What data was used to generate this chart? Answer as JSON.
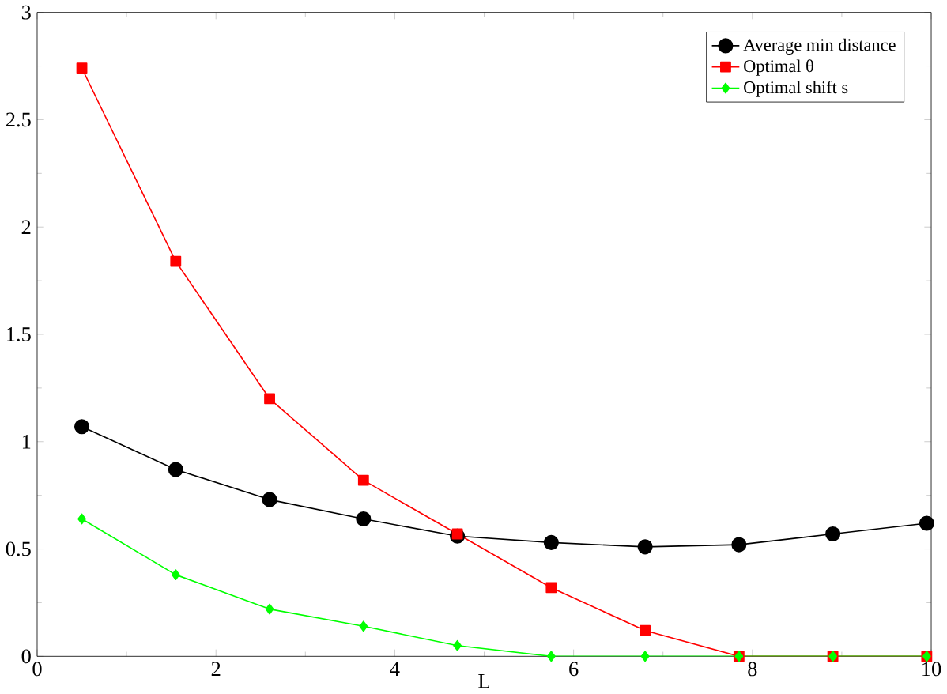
{
  "chart_data": {
    "type": "line",
    "xlabel": "L",
    "x": [
      0.5,
      1.55,
      2.6,
      3.65,
      4.7,
      5.75,
      6.8,
      7.85,
      8.9,
      9.95
    ],
    "series": [
      {
        "name": "Average min distance",
        "color": "#000000",
        "marker": "circle",
        "values": [
          1.07,
          0.87,
          0.73,
          0.64,
          0.56,
          0.53,
          0.51,
          0.52,
          0.57,
          0.62
        ]
      },
      {
        "name": "Optimal θ",
        "color": "#ff0000",
        "marker": "square",
        "values": [
          2.74,
          1.84,
          1.2,
          0.82,
          0.57,
          0.32,
          0.12,
          0,
          0,
          0
        ]
      },
      {
        "name": "Optimal shift s",
        "color": "#00ff00",
        "marker": "diamond",
        "values": [
          0.64,
          0.38,
          0.22,
          0.14,
          0.05,
          0,
          0,
          0,
          0,
          0
        ]
      }
    ],
    "xlim": [
      0,
      10
    ],
    "ylim": [
      0,
      3
    ],
    "xticks": [
      0,
      2,
      4,
      6,
      8,
      10
    ],
    "yticks": [
      0,
      0.5,
      1,
      1.5,
      2,
      2.5,
      3
    ],
    "legend": "top right",
    "grid": false,
    "line_style": "solid"
  }
}
